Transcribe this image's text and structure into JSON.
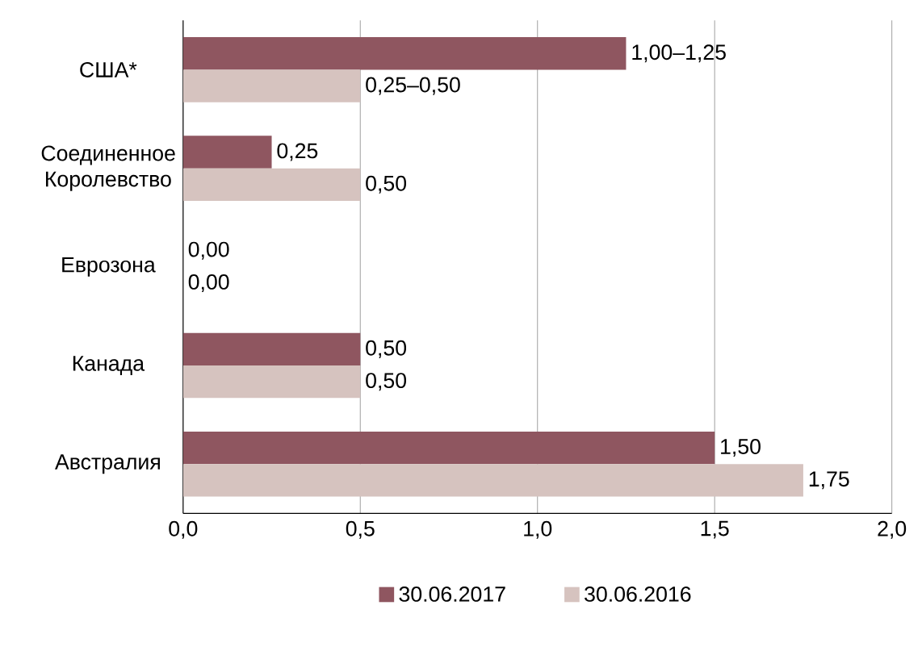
{
  "chart_data": {
    "type": "bar",
    "orientation": "horizontal",
    "categories": [
      "США*",
      "Соединенное Королевство",
      "Еврозона",
      "Канада",
      "Австралия"
    ],
    "series": [
      {
        "name": "30.06.2017",
        "color": "#8f5660",
        "values": [
          1.25,
          0.25,
          0,
          0.5,
          1.5
        ],
        "value_labels": [
          "1,00–1,25",
          "0,25",
          "0,00",
          "0,50",
          "1,50"
        ]
      },
      {
        "name": "30.06.2016",
        "color": "#d6c3bf",
        "values": [
          0.5,
          0.5,
          0,
          0.5,
          1.75
        ],
        "value_labels": [
          "0,25–0,50",
          "0,50",
          "0,00",
          "0,50",
          "1,75"
        ]
      }
    ],
    "xlim": [
      0,
      2
    ],
    "xticks": [
      {
        "value": 0,
        "label": "0,0"
      },
      {
        "value": 0.5,
        "label": "0,5"
      },
      {
        "value": 1,
        "label": "1,0"
      },
      {
        "value": 1.5,
        "label": "1,5"
      },
      {
        "value": 2,
        "label": "2,0"
      }
    ],
    "grid": "x",
    "legend": "bottom"
  }
}
